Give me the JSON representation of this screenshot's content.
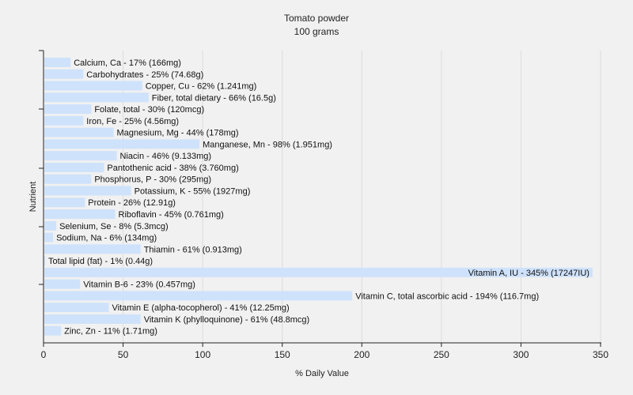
{
  "chart_data": {
    "type": "bar",
    "orientation": "horizontal",
    "title": "Tomato powder",
    "subtitle": "100 grams",
    "xlabel": "% Daily Value",
    "ylabel": "Nutrient",
    "xlim": [
      0,
      350
    ],
    "xticks": [
      "0",
      "50",
      "100",
      "150",
      "200",
      "250",
      "300",
      "350"
    ],
    "grid": "vertical",
    "bar_color": "#cfe2fb",
    "categories": [
      "Calcium, Ca",
      "Carbohydrates",
      "Copper, Cu",
      "Fiber, total dietary",
      "Folate, total",
      "Iron, Fe",
      "Magnesium, Mg",
      "Manganese, Mn",
      "Niacin",
      "Pantothenic acid",
      "Phosphorus, P",
      "Potassium, K",
      "Protein",
      "Riboflavin",
      "Selenium, Se",
      "Sodium, Na",
      "Thiamin",
      "Total lipid (fat)",
      "Vitamin A, IU",
      "Vitamin B-6",
      "Vitamin C, total ascorbic acid",
      "Vitamin E (alpha-tocopherol)",
      "Vitamin K (phylloquinone)",
      "Zinc, Zn"
    ],
    "values": [
      17,
      25,
      62,
      66,
      30,
      25,
      44,
      98,
      46,
      38,
      30,
      55,
      26,
      45,
      8,
      6,
      61,
      1,
      345,
      23,
      194,
      41,
      61,
      11
    ],
    "labels": [
      "Calcium, Ca - 17% (166mg)",
      "Carbohydrates - 25% (74.68g)",
      "Copper, Cu - 62% (1.241mg)",
      "Fiber, total dietary - 66% (16.5g)",
      "Folate, total - 30% (120mcg)",
      "Iron, Fe - 25% (4.56mg)",
      "Magnesium, Mg - 44% (178mg)",
      "Manganese, Mn - 98% (1.951mg)",
      "Niacin - 46% (9.133mg)",
      "Pantothenic acid - 38% (3.760mg)",
      "Phosphorus, P - 30% (295mg)",
      "Potassium, K - 55% (1927mg)",
      "Protein - 26% (12.91g)",
      "Riboflavin - 45% (0.761mg)",
      "Selenium, Se - 8% (5.3mcg)",
      "Sodium, Na - 6% (134mg)",
      "Thiamin - 61% (0.913mg)",
      "Total lipid (fat) - 1% (0.44g)",
      "Vitamin A, IU - 345% (17247IU)",
      "Vitamin B-6 - 23% (0.457mg)",
      "Vitamin C, total ascorbic acid - 194% (116.7mg)",
      "Vitamin E (alpha-tocopherol) - 41% (12.25mg)",
      "Vitamin K (phylloquinone) - 61% (48.8mcg)",
      "Zinc, Zn - 11% (1.71mg)"
    ]
  }
}
